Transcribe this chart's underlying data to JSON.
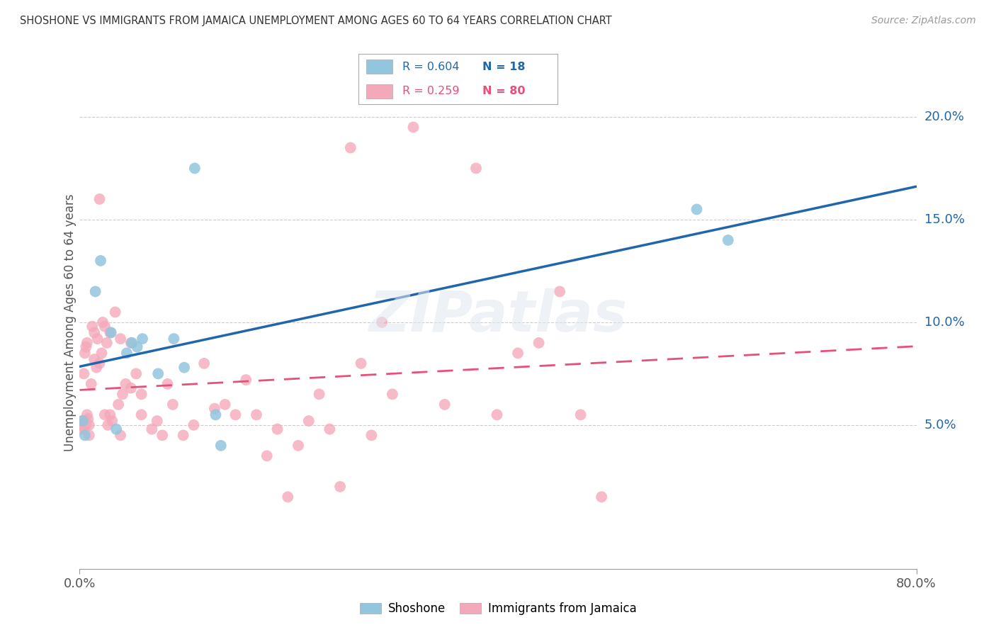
{
  "title": "SHOSHONE VS IMMIGRANTS FROM JAMAICA UNEMPLOYMENT AMONG AGES 60 TO 64 YEARS CORRELATION CHART",
  "source": "Source: ZipAtlas.com",
  "ylabel": "Unemployment Among Ages 60 to 64 years",
  "legend_blue": {
    "R": 0.604,
    "N": 18,
    "label": "Shoshone"
  },
  "legend_pink": {
    "R": 0.259,
    "N": 80,
    "label": "Immigrants from Jamaica"
  },
  "blue_color": "#92c5de",
  "pink_color": "#f4a9bb",
  "trendline_blue_color": "#2166ac",
  "trendline_pink_color": "#e8507a",
  "shoshone_x": [
    0.3,
    0.5,
    1.5,
    2.0,
    3.0,
    3.5,
    4.5,
    5.0,
    5.5,
    6.0,
    7.5,
    9.0,
    10.0,
    11.0,
    13.0,
    13.5,
    59.0,
    62.0
  ],
  "shoshone_y": [
    5.2,
    4.5,
    11.5,
    13.0,
    9.5,
    4.8,
    8.5,
    9.0,
    8.8,
    9.2,
    7.5,
    9.2,
    7.8,
    17.5,
    5.5,
    4.0,
    15.5,
    14.0
  ],
  "jamaica_x": [
    0.1,
    0.2,
    0.2,
    0.3,
    0.3,
    0.4,
    0.4,
    0.4,
    0.5,
    0.5,
    0.6,
    0.6,
    0.7,
    0.7,
    0.8,
    0.9,
    0.9,
    1.1,
    1.2,
    1.4,
    1.4,
    1.6,
    1.7,
    1.9,
    1.9,
    2.1,
    2.2,
    2.4,
    2.4,
    2.6,
    2.7,
    2.9,
    2.9,
    3.1,
    3.4,
    3.7,
    3.9,
    3.9,
    4.1,
    4.4,
    4.9,
    4.9,
    5.4,
    5.9,
    5.9,
    6.9,
    7.4,
    7.9,
    8.4,
    8.9,
    9.9,
    10.9,
    11.9,
    12.9,
    13.9,
    14.9,
    15.9,
    16.9,
    17.9,
    18.9,
    19.9,
    20.9,
    21.9,
    22.9,
    23.9,
    24.9,
    25.9,
    26.9,
    27.9,
    28.9,
    29.9,
    31.9,
    34.9,
    37.9,
    39.9,
    41.9,
    43.9,
    45.9,
    47.9,
    49.9
  ],
  "jamaica_y": [
    5.0,
    4.8,
    5.2,
    5.0,
    5.1,
    4.9,
    5.0,
    7.5,
    5.2,
    8.5,
    5.0,
    8.8,
    5.5,
    9.0,
    5.3,
    5.0,
    4.5,
    7.0,
    9.8,
    8.2,
    9.5,
    7.8,
    9.2,
    8.0,
    16.0,
    8.5,
    10.0,
    9.8,
    5.5,
    9.0,
    5.0,
    5.5,
    9.5,
    5.2,
    10.5,
    6.0,
    4.5,
    9.2,
    6.5,
    7.0,
    6.8,
    9.0,
    7.5,
    6.5,
    5.5,
    4.8,
    5.2,
    4.5,
    7.0,
    6.0,
    4.5,
    5.0,
    8.0,
    5.8,
    6.0,
    5.5,
    7.2,
    5.5,
    3.5,
    4.8,
    1.5,
    4.0,
    5.2,
    6.5,
    4.8,
    2.0,
    18.5,
    8.0,
    4.5,
    10.0,
    6.5,
    19.5,
    6.0,
    17.5,
    5.5,
    8.5,
    9.0,
    11.5,
    5.5,
    1.5
  ],
  "xlim": [
    0,
    80
  ],
  "ylim": [
    -2,
    22
  ],
  "ytick_vals": [
    5.0,
    10.0,
    15.0,
    20.0
  ],
  "xtick_left_label": "0.0%",
  "xtick_right_label": "80.0%"
}
